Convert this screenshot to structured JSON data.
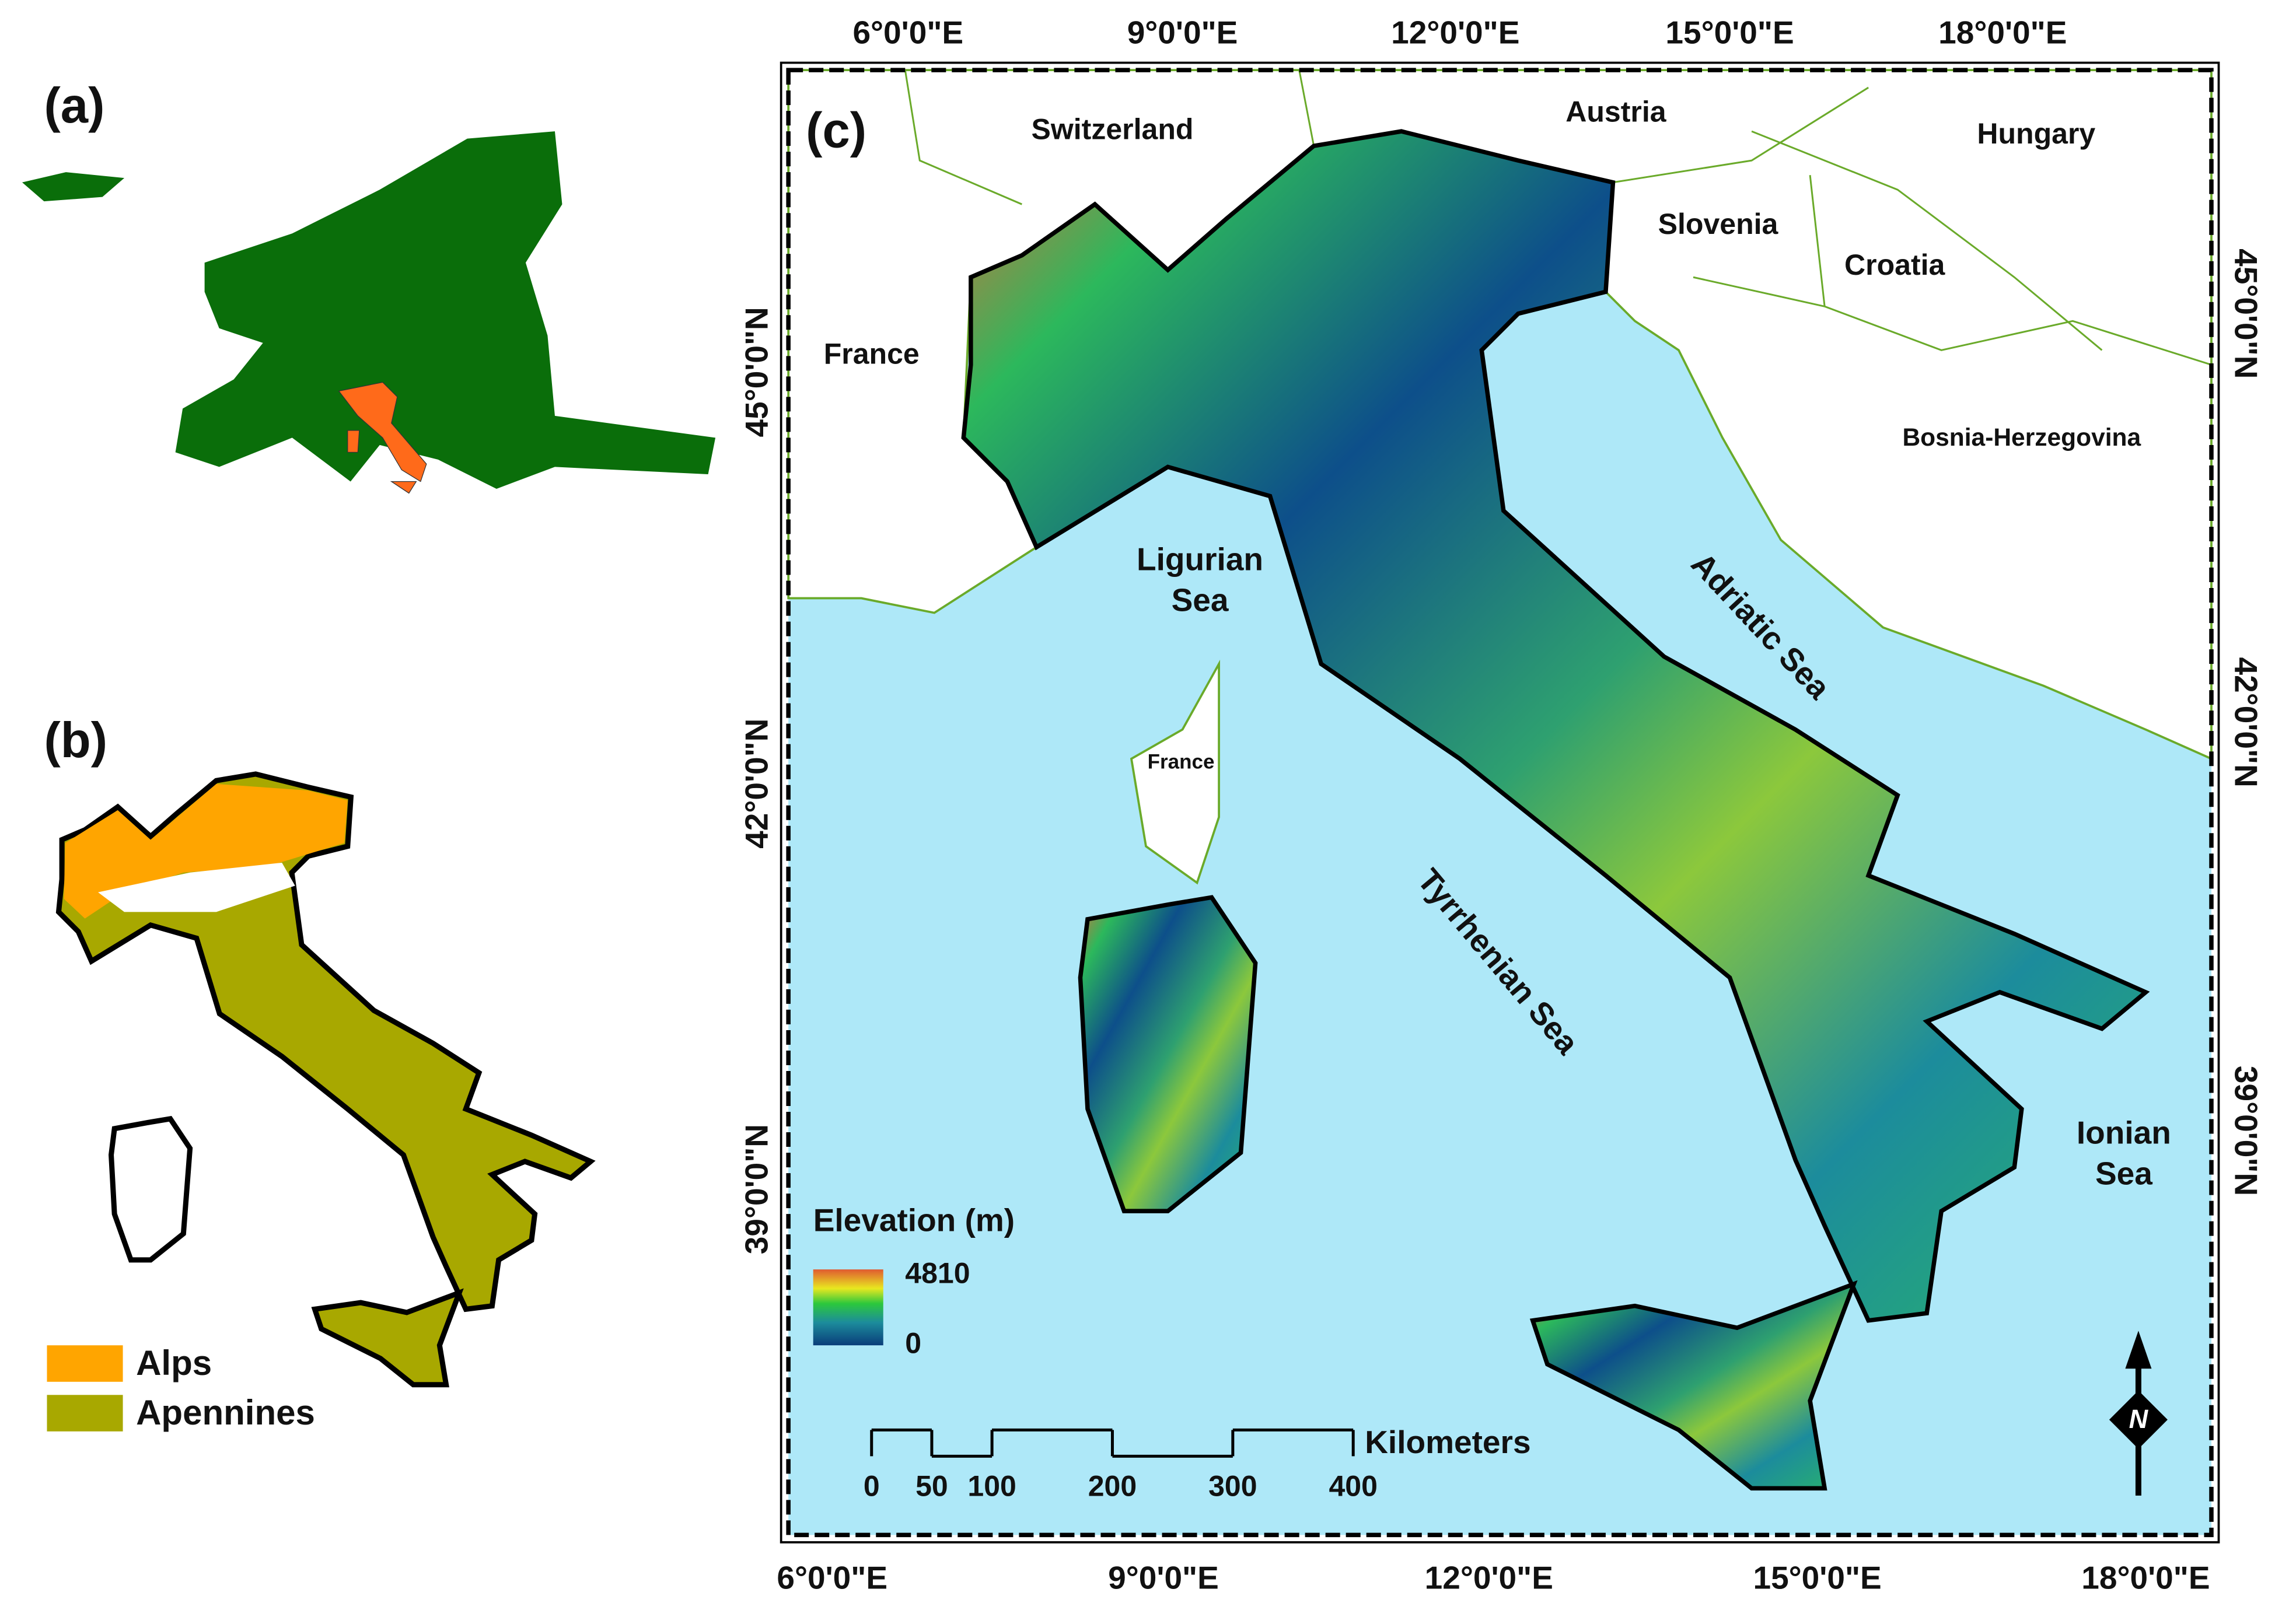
{
  "panel_a": {
    "label": "(a)"
  },
  "panel_b": {
    "label": "(b)",
    "legend": [
      {
        "name": "Alps",
        "color": "#ffa500"
      },
      {
        "name": "Apennines",
        "color": "#a8a800"
      }
    ]
  },
  "panel_c": {
    "label": "(c)",
    "top_labels": [
      "6°0'0\"E",
      "9°0'0\"E",
      "12°0'0\"E",
      "15°0'0\"E",
      "18°0'0\"E"
    ],
    "bottom_labels": [
      "6°0'0\"E",
      "9°0'0\"E",
      "12°0'0\"E",
      "15°0'0\"E",
      "18°0'0\"E"
    ],
    "left_labels": [
      "45°0'0\"N",
      "42°0'0\"N",
      "39°0'0\"N"
    ],
    "right_labels": [
      "45°0'0\"N",
      "42°0'0\"N",
      "39°0'0\"N"
    ],
    "places": [
      {
        "name": "Switzerland"
      },
      {
        "name": "Austria"
      },
      {
        "name": "Hungary"
      },
      {
        "name": "Slovenia"
      },
      {
        "name": "Croatia"
      },
      {
        "name": "France"
      },
      {
        "name": "Bosnia-Herzegovina"
      },
      {
        "name": "France"
      }
    ],
    "seas": [
      {
        "lines": [
          "Ligurian",
          "Sea"
        ]
      },
      {
        "lines": [
          "Adriatic Sea"
        ]
      },
      {
        "lines": [
          "Tyrrhenian Sea"
        ]
      },
      {
        "lines": [
          "Ionian",
          "Sea"
        ]
      }
    ],
    "elevation_legend": {
      "title": "Elevation (m)",
      "max": 4810,
      "min": 0
    },
    "scale_bar": {
      "unit": "Kilometers",
      "ticks": [
        0,
        50,
        100,
        200,
        300,
        400
      ]
    },
    "north": "N"
  }
}
